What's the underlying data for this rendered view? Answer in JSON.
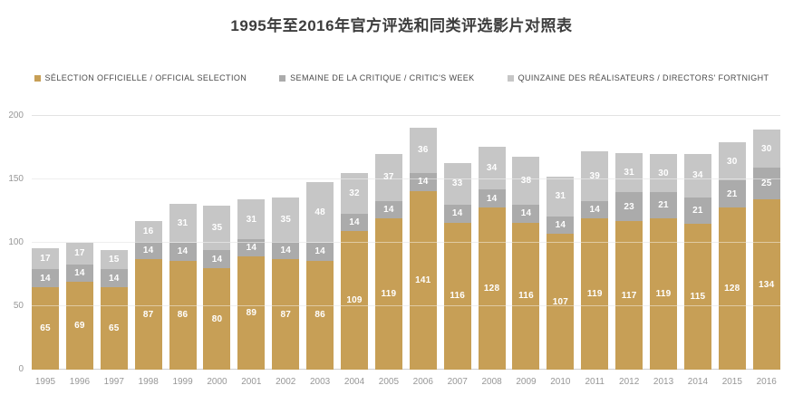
{
  "title": "1995年至2016年官方评选和同类评选影片对照表",
  "colors": {
    "official": "#C79F56",
    "critic": "#ABABAB",
    "fortnight": "#C6C6C6",
    "gridline": "#E2E2E2",
    "baseline": "#CFCFCF",
    "axis_text": "#979797",
    "value_text": "#FFFFFF"
  },
  "chart_data": {
    "type": "bar",
    "stacked": true,
    "title": "1995年至2016年官方评选和同类评选影片对照表",
    "xlabel": "",
    "ylabel": "",
    "ylim": [
      0,
      200
    ],
    "yticks": [
      0,
      50,
      100,
      150,
      200
    ],
    "grid": true,
    "legend_position": "top",
    "categories": [
      "1995",
      "1996",
      "1997",
      "1998",
      "1999",
      "2000",
      "2001",
      "2002",
      "2003",
      "2004",
      "2005",
      "2006",
      "2007",
      "2008",
      "2009",
      "2010",
      "2011",
      "2012",
      "2013",
      "2014",
      "2015",
      "2016"
    ],
    "series": [
      {
        "name": "SÉLECTION OFFICIELLE / OFFICIAL SELECTION",
        "color": "#C79F56",
        "values": [
          65,
          69,
          65,
          87,
          86,
          80,
          89,
          87,
          86,
          109,
          119,
          141,
          116,
          128,
          116,
          107,
          119,
          117,
          119,
          115,
          128,
          134
        ]
      },
      {
        "name": "SEMAINE DE LA CRITIQUE / CRITIC'S WEEK",
        "color": "#ABABAB",
        "values": [
          14,
          14,
          14,
          14,
          14,
          14,
          14,
          14,
          14,
          14,
          14,
          14,
          14,
          14,
          14,
          14,
          14,
          23,
          21,
          21,
          21,
          25
        ]
      },
      {
        "name": "QUINZAINE DES RÉALISATEURS / DIRECTORS' FORTNIGHT",
        "color": "#C6C6C6",
        "values": [
          17,
          17,
          15,
          16,
          31,
          35,
          31,
          35,
          48,
          32,
          37,
          36,
          33,
          34,
          38,
          31,
          39,
          31,
          30,
          34,
          30,
          30
        ]
      }
    ]
  }
}
